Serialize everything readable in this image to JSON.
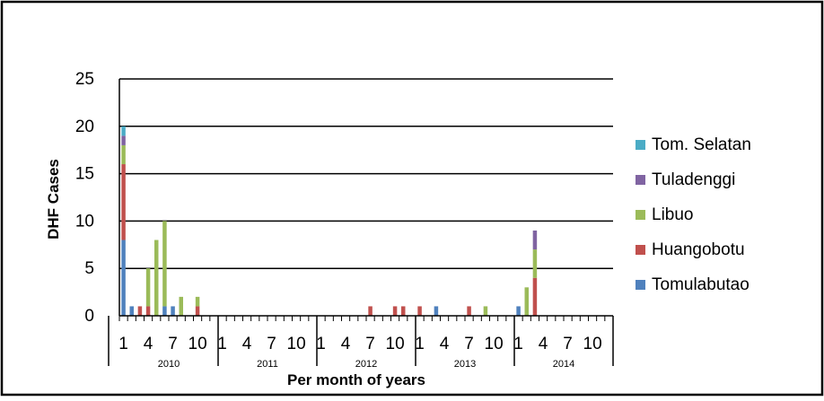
{
  "chart_data": {
    "type": "bar",
    "stacked": true,
    "xlabel": "Per month of years",
    "ylabel": "DHF Cases",
    "ylim": [
      0,
      25
    ],
    "yticks": [
      0,
      5,
      10,
      15,
      20,
      25
    ],
    "grid": "horizontal",
    "legend_position": "right",
    "years": [
      "2010",
      "2011",
      "2012",
      "2013",
      "2014"
    ],
    "month_tick_labels": [
      "1",
      "4",
      "7",
      "10"
    ],
    "months_per_year": 12,
    "series": [
      {
        "name": "Tomulabutao",
        "color": "#4F81BD",
        "values": [
          8,
          1,
          0,
          0,
          0,
          1,
          1,
          0,
          0,
          0,
          0,
          0,
          0,
          0,
          0,
          0,
          0,
          0,
          0,
          0,
          0,
          0,
          0,
          0,
          0,
          0,
          0,
          0,
          0,
          0,
          0,
          0,
          0,
          0,
          0,
          0,
          0,
          0,
          1,
          0,
          0,
          0,
          0,
          0,
          0,
          0,
          0,
          0,
          1,
          0,
          0,
          0,
          0,
          0,
          0,
          0,
          0,
          0,
          0,
          0
        ]
      },
      {
        "name": "Huangobotu",
        "color": "#C0504D",
        "values": [
          8,
          0,
          1,
          1,
          0,
          0,
          0,
          0,
          0,
          1,
          0,
          0,
          0,
          0,
          0,
          0,
          0,
          0,
          0,
          0,
          0,
          0,
          0,
          0,
          0,
          0,
          0,
          0,
          0,
          0,
          1,
          0,
          0,
          1,
          1,
          0,
          1,
          0,
          0,
          0,
          0,
          0,
          1,
          0,
          0,
          0,
          0,
          0,
          0,
          0,
          4,
          0,
          0,
          0,
          0,
          0,
          0,
          0,
          0,
          0
        ]
      },
      {
        "name": "Libuo",
        "color": "#9BBB59",
        "values": [
          2,
          0,
          0,
          4,
          8,
          9,
          0,
          2,
          0,
          1,
          0,
          0,
          0,
          0,
          0,
          0,
          0,
          0,
          0,
          0,
          0,
          0,
          0,
          0,
          0,
          0,
          0,
          0,
          0,
          0,
          0,
          0,
          0,
          0,
          0,
          0,
          0,
          0,
          0,
          0,
          0,
          0,
          0,
          0,
          1,
          0,
          0,
          0,
          0,
          3,
          3,
          0,
          0,
          0,
          0,
          0,
          0,
          0,
          0,
          0
        ]
      },
      {
        "name": "Tuladenggi",
        "color": "#8064A2",
        "values": [
          1,
          0,
          0,
          0,
          0,
          0,
          0,
          0,
          0,
          0,
          0,
          0,
          0,
          0,
          0,
          0,
          0,
          0,
          0,
          0,
          0,
          0,
          0,
          0,
          0,
          0,
          0,
          0,
          0,
          0,
          0,
          0,
          0,
          0,
          0,
          0,
          0,
          0,
          0,
          0,
          0,
          0,
          0,
          0,
          0,
          0,
          0,
          0,
          0,
          0,
          2,
          0,
          0,
          0,
          0,
          0,
          0,
          0,
          0,
          0
        ]
      },
      {
        "name": "Tom. Selatan",
        "color": "#4BACC6",
        "values": [
          1,
          0,
          0,
          0,
          0,
          0,
          0,
          0,
          0,
          0,
          0,
          0,
          0,
          0,
          0,
          0,
          0,
          0,
          0,
          0,
          0,
          0,
          0,
          0,
          0,
          0,
          0,
          0,
          0,
          0,
          0,
          0,
          0,
          0,
          0,
          0,
          0,
          0,
          0,
          0,
          0,
          0,
          0,
          0,
          0,
          0,
          0,
          0,
          0,
          0,
          0,
          0,
          0,
          0,
          0,
          0,
          0,
          0,
          0,
          0
        ]
      }
    ],
    "legend_order": [
      "Tom. Selatan",
      "Tuladenggi",
      "Libuo",
      "Huangobotu",
      "Tomulabutao"
    ]
  }
}
